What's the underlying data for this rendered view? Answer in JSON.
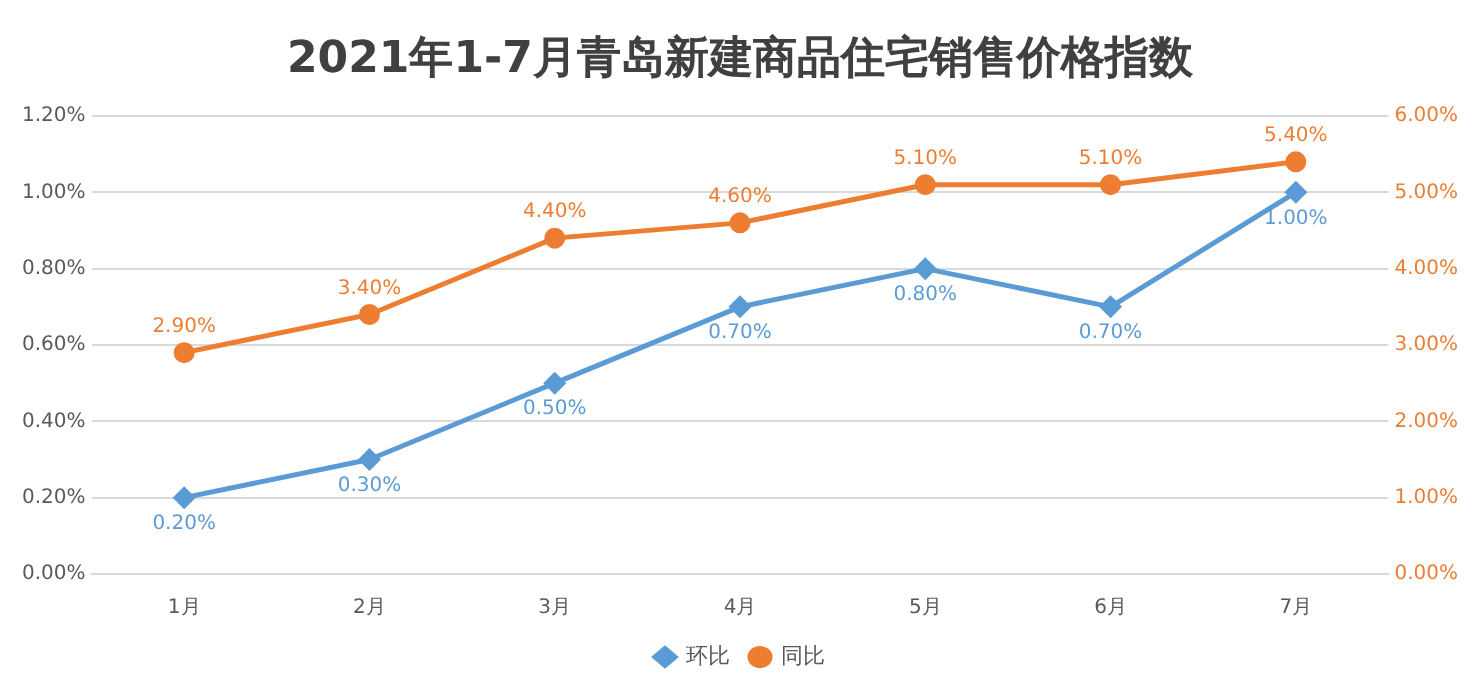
{
  "chart_data": {
    "type": "line",
    "title": "2021年1-7月青岛新建商品住宅销售价格指数",
    "categories": [
      "1月",
      "2月",
      "3月",
      "4月",
      "5月",
      "6月",
      "7月"
    ],
    "series": [
      {
        "name": "环比",
        "color": "#5b9bd5",
        "marker": "diamond",
        "values": [
          0.2,
          0.3,
          0.5,
          0.7,
          0.8,
          0.7,
          1.0
        ],
        "value_labels": [
          "0.20%",
          "0.30%",
          "0.50%",
          "0.70%",
          "0.80%",
          "0.70%",
          "1.00%"
        ]
      },
      {
        "name": "同比",
        "color": "#ed7d31",
        "marker": "circle",
        "axis": "y2",
        "values": [
          2.9,
          3.4,
          4.4,
          4.6,
          5.1,
          5.1,
          5.4
        ],
        "value_labels": [
          "2.90%",
          "3.40%",
          "4.40%",
          "4.60%",
          "5.10%",
          "5.10%",
          "5.40%"
        ]
      }
    ],
    "ylim": [
      0,
      1.2
    ],
    "yticks": [
      {
        "value": 0,
        "label": "0.00%"
      },
      {
        "value": 0.2,
        "label": "0.20%"
      },
      {
        "value": 0.4,
        "label": "0.40%"
      },
      {
        "value": 0.6,
        "label": "0.60%"
      },
      {
        "value": 0.8,
        "label": "0.80%"
      },
      {
        "value": 1.0,
        "label": "1.00%"
      },
      {
        "value": 1.2,
        "label": "1.20%"
      }
    ],
    "y2lim": [
      0,
      6
    ],
    "y2ticks": [
      {
        "value": 0,
        "label": "0.00%"
      },
      {
        "value": 1,
        "label": "1.00%"
      },
      {
        "value": 2,
        "label": "2.00%"
      },
      {
        "value": 3,
        "label": "3.00%"
      },
      {
        "value": 4,
        "label": "4.00%"
      },
      {
        "value": 5,
        "label": "5.00%"
      },
      {
        "value": 6,
        "label": "6.00%"
      }
    ],
    "grid": "y",
    "legend": "bottom",
    "line_style": "solid"
  }
}
